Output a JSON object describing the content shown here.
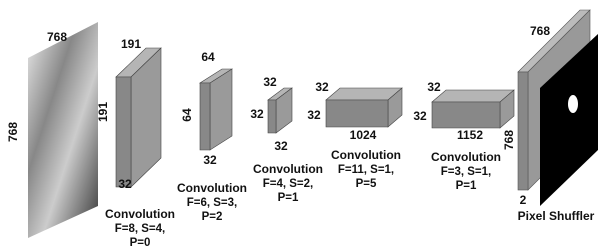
{
  "input": {
    "width_label": "768",
    "height_label": "768"
  },
  "layers": [
    {
      "top": "191",
      "side": "191",
      "depth": "32",
      "caption": [
        "Convolution",
        "F=8, S=4,",
        "P=0"
      ]
    },
    {
      "top": "64",
      "side": "64",
      "depth": "32",
      "caption": [
        "Convolution",
        "F=6, S=3,",
        "P=2"
      ]
    },
    {
      "top": "32",
      "side": "32",
      "depth": "32",
      "caption": [
        "Convolution",
        "F=4, S=2,",
        "P=1"
      ]
    },
    {
      "top": "32",
      "side": "32",
      "depth": "1024",
      "caption": [
        "Convolution",
        "F=11, S=1,",
        "P=5"
      ]
    },
    {
      "top": "32",
      "side": "32",
      "depth": "1152",
      "caption": [
        "Convolution",
        "F=3, S=1,",
        "P=1"
      ]
    }
  ],
  "output": {
    "top": "768",
    "side": "768",
    "depth": "2",
    "label": "Pixel Shuffler"
  }
}
